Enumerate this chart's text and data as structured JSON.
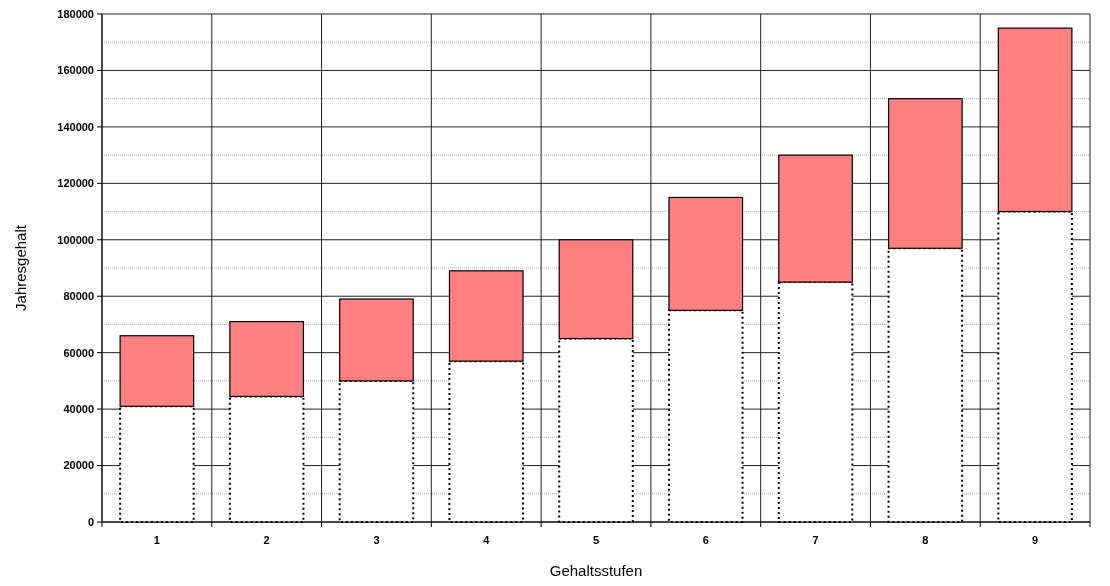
{
  "chart_data": {
    "type": "bar",
    "stacked": true,
    "xlabel": "Gehaltsstufen",
    "ylabel": "Jahresgehalt",
    "categories": [
      "1",
      "2",
      "3",
      "4",
      "5",
      "6",
      "7",
      "8",
      "9"
    ],
    "series": [
      {
        "color": "#ffffff",
        "line_style": "dotted",
        "values": [
          41000,
          44500,
          50000,
          57000,
          65000,
          75000,
          85000,
          97000,
          110000
        ]
      },
      {
        "color": "#ff8080",
        "line_style": "solid",
        "values": [
          25000,
          26500,
          29000,
          32000,
          35000,
          40000,
          45000,
          53000,
          65000
        ]
      }
    ],
    "ylim": [
      0,
      180000
    ],
    "yticks": [
      0,
      20000,
      40000,
      60000,
      80000,
      100000,
      120000,
      140000,
      160000,
      180000
    ],
    "grid": true
  }
}
